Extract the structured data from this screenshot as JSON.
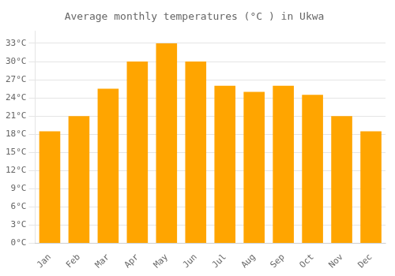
{
  "chart_data": {
    "type": "bar",
    "title": "Average monthly temperatures (°C ) in Ukwa",
    "categories": [
      "Jan",
      "Feb",
      "Mar",
      "Apr",
      "May",
      "Jun",
      "Jul",
      "Aug",
      "Sep",
      "Oct",
      "Nov",
      "Dec"
    ],
    "values": [
      18.5,
      21.0,
      25.5,
      30.0,
      33.0,
      30.0,
      26.0,
      25.0,
      26.0,
      24.5,
      21.0,
      18.5
    ],
    "color": "#FFA500",
    "ylim": [
      0,
      35
    ],
    "yticks": [
      {
        "value": 0,
        "label": "0°C"
      },
      {
        "value": 3,
        "label": "3°C"
      },
      {
        "value": 6,
        "label": "6°C"
      },
      {
        "value": 9,
        "label": "9°C"
      },
      {
        "value": 12,
        "label": "12°C"
      },
      {
        "value": 15,
        "label": "15°C"
      },
      {
        "value": 18,
        "label": "18°C"
      },
      {
        "value": 21,
        "label": "21°C"
      },
      {
        "value": 24,
        "label": "24°C"
      },
      {
        "value": 27,
        "label": "27°C"
      },
      {
        "value": 30,
        "label": "30°C"
      },
      {
        "value": 33,
        "label": "33°C"
      }
    ],
    "grid": true
  }
}
